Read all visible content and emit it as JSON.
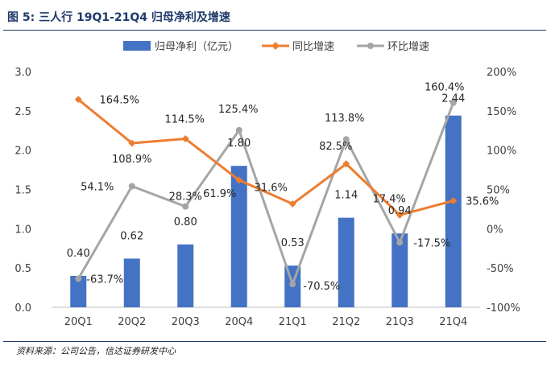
{
  "header": {
    "title": "图  5:  三人行  19Q1-21Q4  归母净利及增速"
  },
  "footer": {
    "source": "资料来源：公司公告，信达证券研发中心"
  },
  "chart_data": {
    "type": "bar",
    "categories": [
      "20Q1",
      "20Q2",
      "20Q3",
      "20Q4",
      "21Q1",
      "21Q2",
      "21Q3",
      "21Q4"
    ],
    "series": [
      {
        "name": "归母净利（亿元）",
        "kind": "bar",
        "axis": "left",
        "values": [
          0.4,
          0.62,
          0.8,
          1.8,
          0.53,
          1.14,
          0.94,
          2.44
        ],
        "labels": [
          "0.40",
          "0.62",
          "0.80",
          "1.80",
          "0.53",
          "1.14",
          "0.94",
          "2.44"
        ],
        "color": "#4472c4"
      },
      {
        "name": "同比增速",
        "kind": "line",
        "axis": "right",
        "values": [
          164.5,
          108.9,
          114.5,
          61.9,
          31.6,
          82.5,
          17.4,
          35.6
        ],
        "labels": [
          "164.5%",
          "108.9%",
          "114.5%",
          "61.9%",
          "31.6%",
          "82.5%",
          "17.4%",
          "35.6%"
        ],
        "color": "#ed7d31"
      },
      {
        "name": "环比增速",
        "kind": "line",
        "axis": "right",
        "values": [
          -63.7,
          54.1,
          28.3,
          125.4,
          -70.5,
          113.8,
          -17.5,
          160.4
        ],
        "labels": [
          "-63.7%",
          "54.1%",
          "28.3%",
          "125.4%",
          "-70.5%",
          "113.8%",
          "-17.5%",
          "160.4%"
        ],
        "color": "#a5a5a5"
      }
    ],
    "y_left": {
      "min": 0,
      "max": 3.0,
      "ticks": [
        "0.0",
        "0.5",
        "1.0",
        "1.5",
        "2.0",
        "2.5",
        "3.0"
      ]
    },
    "y_right": {
      "min": -100,
      "max": 200,
      "ticks": [
        "-100%",
        "-50%",
        "0%",
        "50%",
        "100%",
        "150%",
        "200%"
      ]
    },
    "legend_position": "top-center",
    "grid": false
  }
}
